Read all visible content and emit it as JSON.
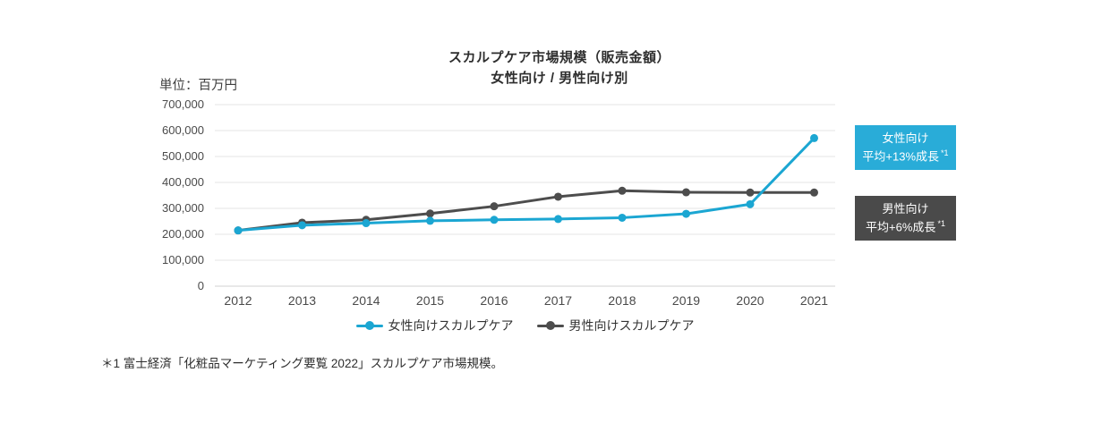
{
  "page": {
    "background": "#ffffff"
  },
  "chart_data": {
    "type": "line",
    "title": "スカルプケア市場規模（販売金額）",
    "subtitle": "女性向け / 男性向け別",
    "unit_label": "単位：百万円",
    "categories": [
      "2012",
      "2013",
      "2014",
      "2015",
      "2016",
      "2017",
      "2018",
      "2019",
      "2020",
      "2021"
    ],
    "series": [
      {
        "name": "女性向けスカルプケア",
        "color": "#1BA6D2",
        "values": [
          215000,
          235000,
          243000,
          252000,
          256000,
          259000,
          264000,
          279000,
          316000,
          571000
        ]
      },
      {
        "name": "男性向けスカルプケア",
        "color": "#4D4D4D",
        "values": [
          215000,
          245000,
          256000,
          280000,
          308000,
          345000,
          368000,
          362000,
          361000,
          361000
        ]
      }
    ],
    "ylim": [
      0,
      700000
    ],
    "ytick_step": 100000,
    "grid": true,
    "gridline_color": "#E4E4E4",
    "baseline_color": "#D2D2D2",
    "legend_position": "bottom"
  },
  "annotations": [
    {
      "line1": "女性向け",
      "line2": "平均+13%成長",
      "sup": "*1",
      "bg": "#29ACD8"
    },
    {
      "line1": "男性向け",
      "line2": "平均+6%成長",
      "sup": "*1",
      "bg": "#4A4A4A"
    }
  ],
  "footnote": "＊1 富士経済「化粧品マーケティング要覧 2022」スカルプケア市場規模。"
}
